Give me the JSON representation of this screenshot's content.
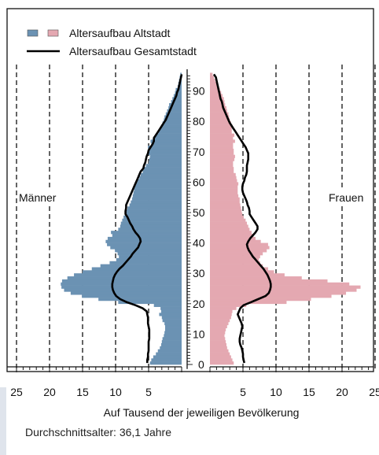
{
  "chart_data": {
    "type": "bar",
    "subtype": "population-pyramid",
    "legend": {
      "placement": "top-left",
      "entries": [
        {
          "label": "Altersaufbau Altstadt",
          "colors": [
            "#6b92b3",
            "#e4a8b1"
          ],
          "kind": "bar"
        },
        {
          "label": "Altersaufbau Gesamtstadt",
          "color": "#000000",
          "kind": "line"
        }
      ]
    },
    "side_labels": {
      "left": "Männer",
      "right": "Frauen"
    },
    "xlabel": "Auf Tausend der jeweiligen Bevölkerung",
    "ylabel": "",
    "xlim": [
      0,
      25
    ],
    "ylim": [
      -2,
      96
    ],
    "x_ticks": [
      25,
      20,
      15,
      10,
      5
    ],
    "right_x_ticks": [
      5,
      10,
      15,
      20,
      25
    ],
    "y_ticks": [
      0,
      10,
      20,
      30,
      40,
      50,
      60,
      70,
      80,
      90
    ],
    "grid": "vertical dashed lines every 5",
    "colors": {
      "male": "#6b92b3",
      "female": "#e4a8b1",
      "gesamtstadt": "#000000"
    },
    "ages": [
      0,
      1,
      2,
      3,
      4,
      5,
      6,
      7,
      8,
      9,
      10,
      11,
      12,
      13,
      14,
      15,
      16,
      17,
      18,
      19,
      20,
      21,
      22,
      23,
      24,
      25,
      26,
      27,
      28,
      29,
      30,
      31,
      32,
      33,
      34,
      35,
      36,
      37,
      38,
      39,
      40,
      41,
      42,
      43,
      44,
      45,
      46,
      47,
      48,
      49,
      50,
      51,
      52,
      53,
      54,
      55,
      56,
      57,
      58,
      59,
      60,
      61,
      62,
      63,
      64,
      65,
      66,
      67,
      68,
      69,
      70,
      71,
      72,
      73,
      74,
      75,
      76,
      77,
      78,
      79,
      80,
      81,
      82,
      83,
      84,
      85,
      86,
      87,
      88,
      89,
      90,
      91,
      92,
      93,
      94,
      95
    ],
    "series": [
      {
        "name": "Altstadt Männer",
        "values": [
          4.8,
          4.6,
          4.3,
          3.9,
          3.6,
          3.3,
          3.1,
          3.0,
          2.9,
          2.7,
          2.6,
          2.5,
          2.5,
          2.6,
          2.9,
          3.0,
          3.4,
          3.1,
          3.2,
          4.2,
          9.6,
          12.6,
          15.1,
          16.8,
          17.8,
          18.2,
          18.3,
          18.1,
          17.3,
          16.3,
          15.0,
          13.6,
          12.3,
          10.9,
          9.9,
          9.5,
          9.7,
          10.1,
          10.8,
          11.3,
          11.5,
          11.2,
          10.5,
          10.7,
          9.6,
          9.3,
          9.2,
          9.0,
          8.8,
          8.6,
          8.4,
          8.2,
          7.9,
          7.7,
          7.5,
          7.4,
          7.3,
          7.2,
          7.1,
          6.9,
          6.7,
          6.4,
          6.2,
          5.9,
          5.7,
          5.4,
          5.0,
          4.9,
          4.8,
          5.0,
          4.9,
          5.1,
          4.6,
          4.7,
          4.3,
          3.9,
          3.5,
          3.3,
          3.1,
          2.9,
          2.7,
          2.6,
          2.4,
          2.2,
          2.0,
          1.9,
          1.6,
          1.4,
          1.2,
          1.0,
          0.9,
          0.6,
          0.5,
          0.4,
          0.3,
          0.2
        ]
      },
      {
        "name": "Altstadt Frauen",
        "values": [
          3.6,
          3.4,
          3.2,
          3.0,
          2.8,
          2.6,
          2.5,
          2.4,
          2.3,
          2.2,
          2.3,
          2.4,
          2.6,
          2.8,
          3.0,
          3.2,
          3.3,
          3.4,
          4.0,
          5.5,
          11.6,
          15.3,
          18.4,
          20.6,
          22.2,
          22.8,
          21.1,
          17.8,
          13.9,
          11.3,
          9.7,
          8.8,
          8.0,
          7.6,
          7.4,
          7.6,
          8.0,
          8.6,
          9.0,
          8.8,
          7.7,
          6.9,
          6.6,
          6.3,
          6.0,
          5.8,
          5.6,
          5.4,
          5.1,
          4.9,
          4.8,
          4.7,
          4.6,
          4.5,
          4.5,
          4.3,
          4.2,
          4.2,
          4.2,
          4.3,
          4.1,
          4.0,
          3.9,
          3.6,
          3.6,
          3.5,
          3.5,
          3.7,
          3.8,
          3.6,
          3.6,
          3.5,
          3.5,
          3.8,
          3.5,
          3.7,
          3.3,
          3.3,
          3.4,
          3.2,
          3.0,
          2.9,
          2.8,
          2.6,
          2.5,
          2.3,
          2.2,
          2.1,
          1.9,
          1.7,
          1.5,
          1.3,
          1.1,
          0.8,
          0.6,
          0.4
        ]
      },
      {
        "name": "Gesamtstadt Männer",
        "values": [
          5.2,
          5.2,
          5.1,
          5.1,
          5.0,
          5.0,
          5.0,
          5.0,
          4.9,
          4.9,
          4.9,
          4.9,
          5.0,
          5.1,
          5.1,
          5.1,
          5.2,
          5.3,
          5.9,
          7.0,
          8.3,
          9.3,
          9.9,
          10.2,
          10.4,
          10.5,
          10.5,
          10.4,
          10.3,
          10.1,
          9.8,
          9.4,
          8.9,
          8.5,
          8.1,
          7.7,
          7.4,
          7.0,
          6.6,
          6.4,
          6.2,
          6.3,
          6.6,
          7.0,
          7.3,
          7.5,
          7.8,
          8.0,
          8.2,
          8.5,
          8.5,
          8.4,
          8.4,
          8.2,
          8.0,
          7.8,
          7.6,
          7.4,
          7.2,
          7.0,
          6.8,
          6.6,
          6.4,
          6.2,
          5.8,
          5.7,
          5.5,
          5.4,
          5.3,
          5.1,
          5.0,
          4.7,
          4.4,
          4.2,
          4.2,
          3.9,
          3.6,
          3.3,
          3.0,
          2.7,
          2.4,
          2.2,
          2.0,
          1.8,
          1.6,
          1.4,
          1.2,
          1.0,
          0.8,
          0.7,
          0.5,
          0.4,
          0.3,
          0.2,
          0.1,
          0.0
        ]
      },
      {
        "name": "Gesamtstadt Frauen",
        "values": [
          5.2,
          5.1,
          5.0,
          5.0,
          4.9,
          4.8,
          4.6,
          4.5,
          4.5,
          4.6,
          4.7,
          4.8,
          4.9,
          4.8,
          4.6,
          4.4,
          4.2,
          4.4,
          4.6,
          5.1,
          6.2,
          7.3,
          8.4,
          8.9,
          9.1,
          9.2,
          9.2,
          9.1,
          8.9,
          8.7,
          8.4,
          8.1,
          7.7,
          7.3,
          6.9,
          6.5,
          6.2,
          5.9,
          5.7,
          5.6,
          5.8,
          6.1,
          6.5,
          6.9,
          7.2,
          7.2,
          6.9,
          6.6,
          6.3,
          6.0,
          6.0,
          5.9,
          5.7,
          5.6,
          5.4,
          5.2,
          5.0,
          4.9,
          4.9,
          5.0,
          5.2,
          5.3,
          5.5,
          5.6,
          5.6,
          5.6,
          5.7,
          5.8,
          5.8,
          5.8,
          5.6,
          5.4,
          5.1,
          4.8,
          4.5,
          4.2,
          3.9,
          3.6,
          3.3,
          3.0,
          2.8,
          2.6,
          2.4,
          2.2,
          2.0,
          1.9,
          1.8,
          1.6,
          1.5,
          1.4,
          1.3,
          1.2,
          1.1,
          1.0,
          0.9,
          0.6
        ]
      }
    ]
  },
  "footer": {
    "text": "Durchschnittsalter: 36,1 Jahre"
  }
}
